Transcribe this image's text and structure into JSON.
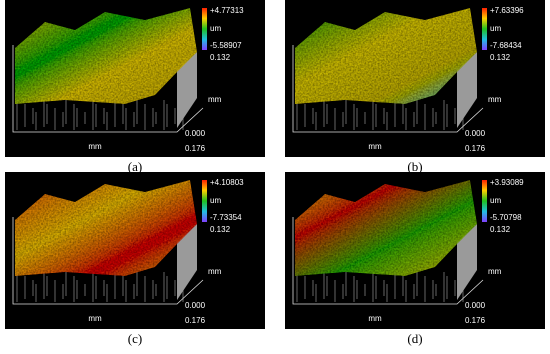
{
  "panels": [
    {
      "max": "+4.77313",
      "unit": "um",
      "min": "-5.58907",
      "z_range": "0.132",
      "y_axis": "mm",
      "origin": "0.000",
      "x_axis": "mm",
      "x_end": "0.176",
      "caption": "(a)"
    },
    {
      "max": "+7.63396",
      "unit": "um",
      "min": "-7.68434",
      "z_range": "0.132",
      "y_axis": "mm",
      "origin": "0.000",
      "x_axis": "mm",
      "x_end": "0.176",
      "caption": "(b)"
    },
    {
      "max": "+4.10803",
      "unit": "um",
      "min": "-7.73354",
      "z_range": "0.132",
      "y_axis": "mm",
      "origin": "0.000",
      "x_axis": "mm",
      "x_end": "0.176",
      "caption": "(c)"
    },
    {
      "max": "+3.93089",
      "unit": "um",
      "min": "-5.70798",
      "z_range": "0.132",
      "y_axis": "mm",
      "origin": "0.000",
      "x_axis": "mm",
      "x_end": "0.176",
      "caption": "(d)"
    }
  ]
}
